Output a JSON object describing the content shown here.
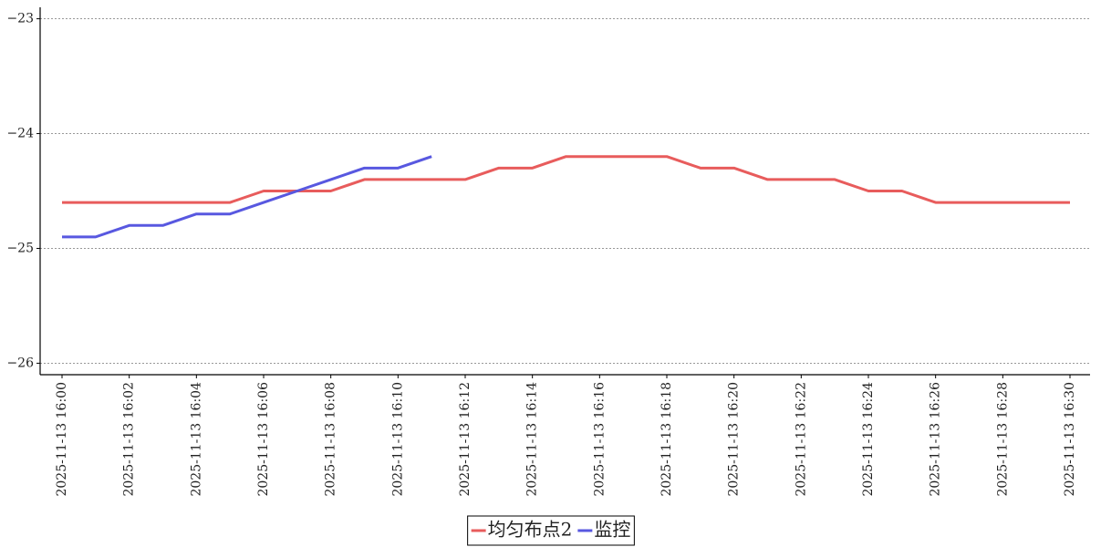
{
  "chart_data": {
    "type": "line",
    "categories": [
      "2025-11-13 16:00",
      null,
      "2025-11-13 16:02",
      null,
      "2025-11-13 16:04",
      null,
      "2025-11-13 16:06",
      null,
      "2025-11-13 16:08",
      null,
      "2025-11-13 16:10",
      null,
      "2025-11-13 16:12",
      null,
      "2025-11-13 16:14",
      null,
      "2025-11-13 16:16",
      null,
      "2025-11-13 16:18",
      null,
      "2025-11-13 16:20",
      null,
      "2025-11-13 16:22",
      null,
      "2025-11-13 16:24",
      null,
      "2025-11-13 16:26",
      null,
      "2025-11-13 16:28",
      null,
      "2025-11-13 16:30"
    ],
    "series": [
      {
        "name": "均匀布点2",
        "color": "#e85c5c",
        "values": [
          -24.6,
          -24.6,
          -24.6,
          -24.6,
          -24.6,
          -24.6,
          -24.5,
          -24.5,
          -24.5,
          -24.4,
          -24.4,
          -24.4,
          -24.4,
          -24.3,
          -24.3,
          -24.2,
          -24.2,
          -24.2,
          -24.2,
          -24.3,
          -24.3,
          -24.4,
          -24.4,
          -24.4,
          -24.5,
          -24.5,
          -24.6,
          -24.6,
          -24.6,
          -24.6,
          -24.6
        ]
      },
      {
        "name": "监控",
        "color": "#5858e0",
        "values": [
          -24.9,
          -24.9,
          -24.8,
          -24.8,
          -24.7,
          -24.7,
          -24.6,
          -24.5,
          -24.4,
          -24.3,
          -24.3,
          -24.2,
          null,
          null,
          null,
          null,
          null,
          null,
          null,
          null,
          null,
          null,
          null,
          null,
          null,
          null,
          null,
          null,
          null,
          null,
          null
        ]
      }
    ],
    "ylim": [
      -26.1,
      -22.9
    ],
    "yticks": [
      {
        "value": -26,
        "label": "−26"
      },
      {
        "value": -25,
        "label": "−25"
      },
      {
        "value": -24,
        "label": "−24"
      },
      {
        "value": -23,
        "label": "−23"
      }
    ],
    "grid": true,
    "legend": "bottom"
  }
}
